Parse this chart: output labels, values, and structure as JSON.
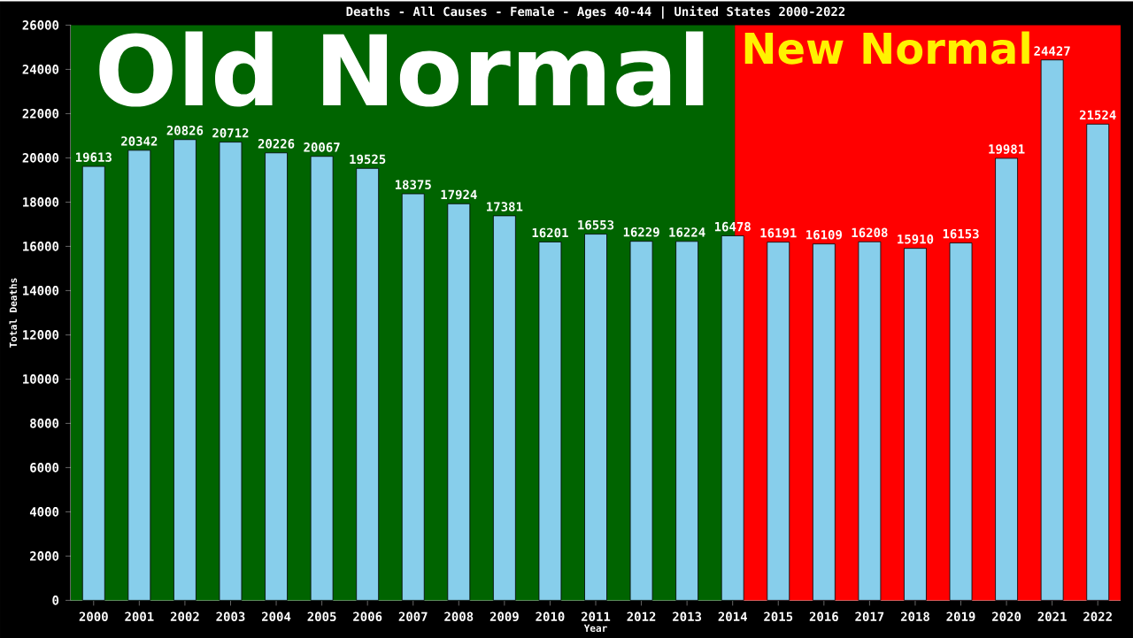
{
  "chart_data": {
    "type": "bar",
    "title": "Deaths - All Causes - Female - Ages 40-44 | United States 2000-2022",
    "xlabel": "Year",
    "ylabel": "Total Deaths",
    "x": [
      2000,
      2001,
      2002,
      2003,
      2004,
      2005,
      2006,
      2007,
      2008,
      2009,
      2010,
      2011,
      2012,
      2013,
      2014,
      2015,
      2016,
      2017,
      2018,
      2019,
      2020,
      2021,
      2022
    ],
    "values": [
      19613,
      20342,
      20826,
      20712,
      20226,
      20067,
      19525,
      18375,
      17924,
      17381,
      16201,
      16553,
      16229,
      16224,
      16478,
      16191,
      16109,
      16208,
      15910,
      16153,
      19981,
      24427,
      21524
    ],
    "color": "#87ceeb",
    "data_labels": true,
    "grid": false,
    "xlim": [
      1999.5,
      2022.5
    ],
    "xticks": [
      2000,
      2001,
      2002,
      2003,
      2004,
      2005,
      2006,
      2007,
      2008,
      2009,
      2010,
      2011,
      2012,
      2013,
      2014,
      2015,
      2016,
      2017,
      2018,
      2019,
      2020,
      2021,
      2022
    ],
    "ylim": [
      0,
      26000
    ],
    "yticks": [
      0,
      2000,
      4000,
      6000,
      8000,
      10000,
      12000,
      14000,
      16000,
      18000,
      20000,
      22000,
      24000,
      26000
    ],
    "bands": [
      {
        "axis": "x",
        "from": 1999.5,
        "to": 2014.05,
        "label": "Old Normal",
        "color": "#006400"
      },
      {
        "axis": "x",
        "from": 2014.05,
        "to": 2022.5,
        "label": "New Normal",
        "color": "#ff0000"
      }
    ]
  }
}
